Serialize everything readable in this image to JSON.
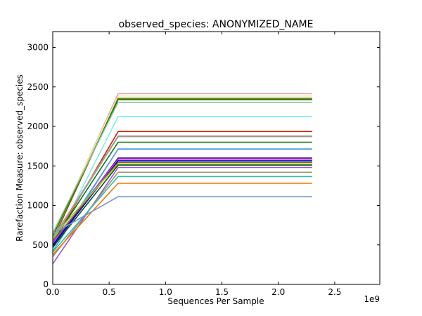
{
  "chart_data": {
    "type": "line",
    "title": "observed_species: ANONYMIZED_NAME",
    "xlabel": "Sequences Per Sample",
    "ylabel": "Rarefaction Measure: observed_species",
    "x_offset_label": "1e9",
    "xlim": [
      0,
      2.9
    ],
    "ylim": [
      0,
      3200
    ],
    "x_tick_labels": [
      "0.0",
      "0.5",
      "1.0",
      "1.5",
      "2.0",
      "2.5"
    ],
    "y_tick_labels": [
      "0",
      "500",
      "1000",
      "1500",
      "2000",
      "2500",
      "3000"
    ],
    "x_ticks": [
      0,
      0.5,
      1.0,
      1.5,
      2.0,
      2.5
    ],
    "y_ticks": [
      0,
      500,
      1000,
      1500,
      2000,
      2500,
      3000
    ],
    "x": [
      0,
      0.58,
      2.3
    ],
    "grid": false,
    "series": [
      {
        "color": "#ee99cc",
        "values": [
          600,
          2415,
          2415
        ]
      },
      {
        "color": "#eeee99",
        "values": [
          620,
          2385,
          2385
        ]
      },
      {
        "color": "#8b5a00",
        "values": [
          560,
          2355,
          2355
        ]
      },
      {
        "color": "#008b00",
        "values": [
          610,
          2340,
          2340
        ]
      },
      {
        "color": "#99bb99",
        "values": [
          650,
          2305,
          2305
        ]
      },
      {
        "color": "#77eeee",
        "values": [
          480,
          2125,
          2125
        ]
      },
      {
        "color": "#cc2200",
        "values": [
          520,
          1935,
          1935
        ]
      },
      {
        "color": "#cc9999",
        "values": [
          590,
          1880,
          1880
        ]
      },
      {
        "color": "#999999",
        "values": [
          570,
          1870,
          1870
        ]
      },
      {
        "color": "#117711",
        "values": [
          540,
          1800,
          1800
        ]
      },
      {
        "color": "#22bbcc",
        "values": [
          420,
          1715,
          1715
        ]
      },
      {
        "color": "#6699ee",
        "values": [
          460,
          1710,
          1710
        ]
      },
      {
        "color": "#330099",
        "values": [
          500,
          1600,
          1600
        ]
      },
      {
        "color": "#cc33cc",
        "values": [
          530,
          1585,
          1585
        ]
      },
      {
        "color": "#0000dd",
        "values": [
          490,
          1565,
          1565
        ]
      },
      {
        "color": "#886622",
        "values": [
          550,
          1545,
          1545
        ]
      },
      {
        "color": "#99cc22",
        "values": [
          600,
          1525,
          1525
        ]
      },
      {
        "color": "#115511",
        "values": [
          470,
          1510,
          1510
        ]
      },
      {
        "color": "#9955dd",
        "values": [
          260,
          1480,
          1480
        ]
      },
      {
        "color": "#999966",
        "values": [
          350,
          1420,
          1420
        ]
      },
      {
        "color": "#33bbaa",
        "values": [
          410,
          1365,
          1365
        ]
      },
      {
        "color": "#ee7700",
        "values": [
          380,
          1280,
          1280
        ]
      },
      {
        "color": "#7799cc",
        "values": [
          640,
          1110,
          1110
        ]
      }
    ]
  }
}
